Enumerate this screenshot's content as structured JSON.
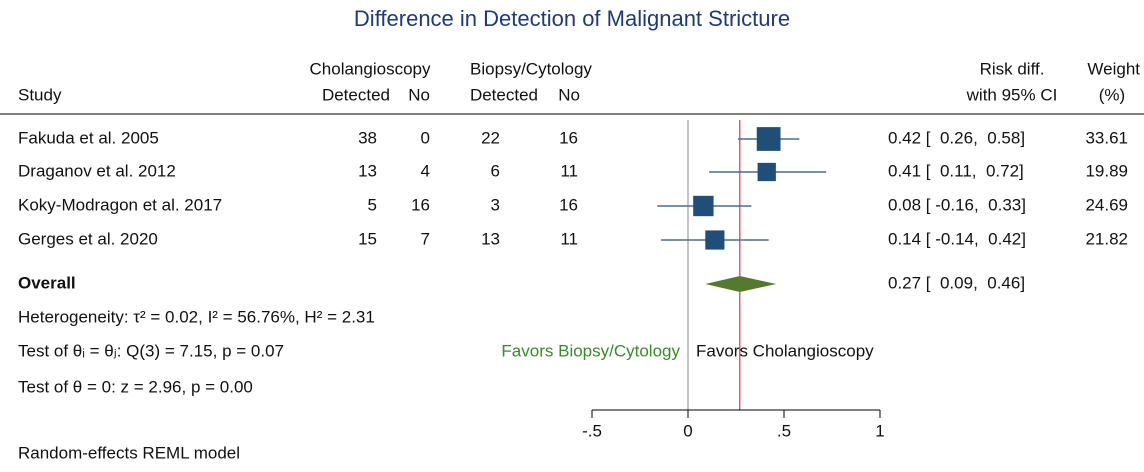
{
  "chart_data": {
    "type": "forest",
    "title": "Difference in Detection of Malignant Stricture",
    "group_headers": [
      "Cholangioscopy",
      "Biopsy/Cytology"
    ],
    "column_headers": [
      "Study",
      "Detected",
      "No",
      "Detected",
      "No"
    ],
    "effect_header": [
      "Risk diff.",
      "with 95% CI"
    ],
    "weight_header": [
      "Weight",
      "(%)"
    ],
    "studies": [
      {
        "name": "Fakuda et al. 2005",
        "counts": [
          38,
          0,
          22,
          16
        ],
        "rd": 0.42,
        "lo": 0.26,
        "hi": 0.58,
        "ci_label": "0.42 [  0.26,  0.58]",
        "weight": 33.61
      },
      {
        "name": "Draganov et al. 2012",
        "counts": [
          13,
          4,
          6,
          11
        ],
        "rd": 0.41,
        "lo": 0.11,
        "hi": 0.72,
        "ci_label": "0.41 [  0.11,  0.72]",
        "weight": 19.89
      },
      {
        "name": "Koky-Modragon et al. 2017",
        "counts": [
          5,
          16,
          3,
          16
        ],
        "rd": 0.08,
        "lo": -0.16,
        "hi": 0.33,
        "ci_label": "0.08 [ -0.16,  0.33]",
        "weight": 24.69
      },
      {
        "name": "Gerges et al. 2020",
        "counts": [
          15,
          7,
          13,
          11
        ],
        "rd": 0.14,
        "lo": -0.14,
        "hi": 0.42,
        "ci_label": "0.14 [ -0.14,  0.42]",
        "weight": 21.82
      }
    ],
    "overall": {
      "name": "Overall",
      "rd": 0.27,
      "lo": 0.09,
      "hi": 0.46,
      "ci_label": "0.27 [  0.09,  0.46]"
    },
    "stats": [
      "Heterogeneity: τ² = 0.02, I² = 56.76%, H² = 2.31",
      "Test of θᵢ = θⱼ: Q(3) = 7.15, p = 0.07",
      "Test of θ = 0: z = 2.96, p = 0.00"
    ],
    "favors": [
      "Favors Biopsy/Cytology",
      "Favors Cholangioscopy"
    ],
    "xlim": [
      -0.5,
      1
    ],
    "xticks": [
      {
        "value": -0.5,
        "label": "-.5"
      },
      0,
      {
        "value": 0.5,
        "label": ".5"
      },
      1
    ],
    "note": "Random-effects REML model"
  }
}
